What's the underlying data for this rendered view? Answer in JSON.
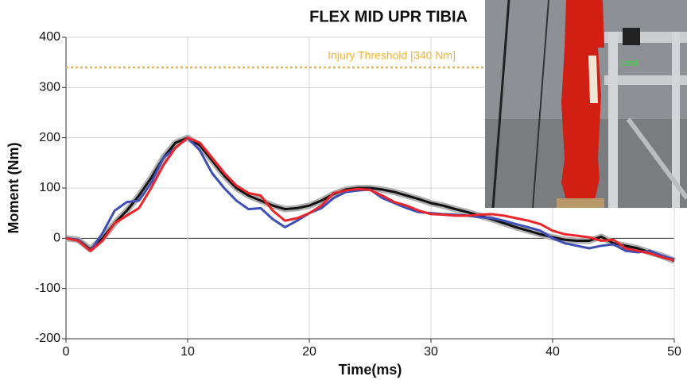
{
  "chart_data": {
    "type": "line",
    "title": "FLEX MID UPR TIBIA",
    "x_label": "Time(ms)",
    "y_label": "Moment (Nm)",
    "x": [
      0,
      1,
      2,
      3,
      4,
      5,
      6,
      7,
      8,
      9,
      10,
      11,
      12,
      13,
      14,
      15,
      16,
      17,
      18,
      19,
      20,
      21,
      22,
      23,
      24,
      25,
      26,
      27,
      28,
      29,
      30,
      31,
      32,
      33,
      34,
      35,
      36,
      37,
      38,
      39,
      40,
      41,
      42,
      43,
      44,
      45,
      46,
      47,
      48,
      49,
      50
    ],
    "series": [
      {
        "color": "#111111",
        "band_color": "#b0b0b0",
        "values": [
          0,
          -3,
          -22,
          0,
          30,
          55,
          85,
          120,
          160,
          190,
          200,
          185,
          155,
          125,
          100,
          85,
          75,
          65,
          58,
          60,
          65,
          75,
          88,
          97,
          100,
          100,
          97,
          92,
          85,
          78,
          70,
          65,
          58,
          52,
          45,
          38,
          30,
          22,
          15,
          8,
          2,
          -3,
          -5,
          -5,
          3,
          -10,
          -15,
          -20,
          -28,
          -35,
          -45
        ]
      },
      {
        "color": "#3f4fb5",
        "values": [
          0,
          -3,
          -25,
          10,
          55,
          72,
          75,
          110,
          160,
          180,
          200,
          175,
          130,
          100,
          75,
          58,
          60,
          38,
          22,
          35,
          50,
          60,
          80,
          92,
          95,
          97,
          80,
          70,
          60,
          52,
          50,
          48,
          47,
          45,
          42,
          40,
          35,
          28,
          22,
          15,
          0,
          -10,
          -15,
          -20,
          -15,
          -12,
          -25,
          -28,
          -25,
          -35,
          -42
        ]
      },
      {
        "color": "#e8262b",
        "values": [
          0,
          -5,
          -25,
          -5,
          30,
          45,
          60,
          100,
          145,
          180,
          200,
          190,
          160,
          130,
          105,
          90,
          85,
          55,
          35,
          40,
          50,
          65,
          90,
          95,
          98,
          96,
          85,
          72,
          65,
          55,
          48,
          47,
          45,
          45,
          47,
          48,
          45,
          40,
          35,
          28,
          15,
          8,
          5,
          2,
          -5,
          -3,
          -20,
          -25,
          -30,
          -38,
          -44
        ]
      }
    ],
    "threshold": {
      "value": 340,
      "label": "Injury Threshold [340 Nm]",
      "color": "#f2b233"
    },
    "photo_label": "best",
    "xlim": [
      0,
      50
    ],
    "xticks": [
      0,
      10,
      20,
      30,
      40,
      50
    ],
    "ylim": [
      -200,
      400
    ],
    "yticks": [
      -200,
      -100,
      0,
      100,
      200,
      300,
      400
    ],
    "grid": true
  }
}
